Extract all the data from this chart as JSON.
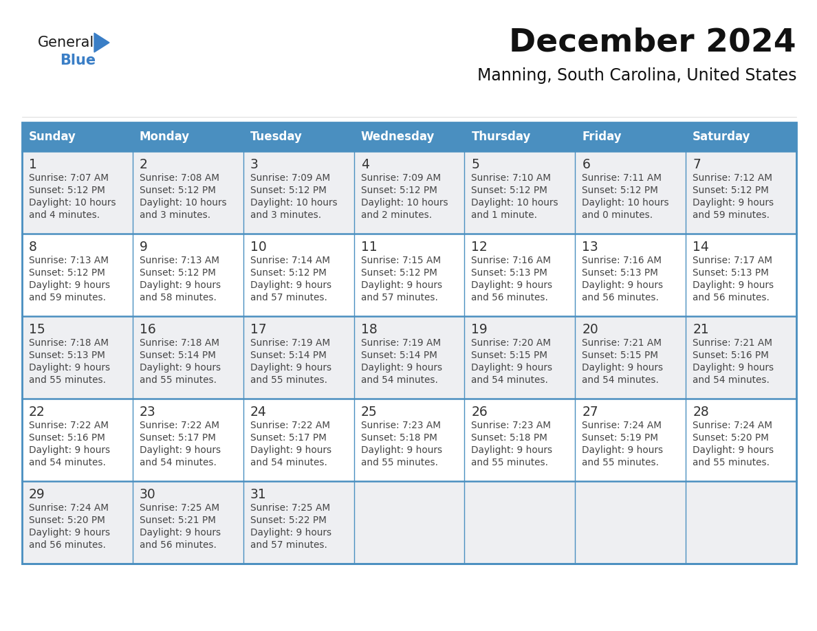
{
  "title": "December 2024",
  "subtitle": "Manning, South Carolina, United States",
  "header_color": "#4A8FC0",
  "header_text_color": "#FFFFFF",
  "cell_bg_even": "#EEEFF2",
  "cell_bg_odd": "#FFFFFF",
  "border_color": "#4A8FC0",
  "text_color": "#444444",
  "day_num_color": "#333333",
  "days_of_week": [
    "Sunday",
    "Monday",
    "Tuesday",
    "Wednesday",
    "Thursday",
    "Friday",
    "Saturday"
  ],
  "weeks": [
    [
      {
        "day": 1,
        "sunrise": "7:07 AM",
        "sunset": "5:12 PM",
        "daylight_h": "10 hours",
        "daylight_m": "and 4 minutes."
      },
      {
        "day": 2,
        "sunrise": "7:08 AM",
        "sunset": "5:12 PM",
        "daylight_h": "10 hours",
        "daylight_m": "and 3 minutes."
      },
      {
        "day": 3,
        "sunrise": "7:09 AM",
        "sunset": "5:12 PM",
        "daylight_h": "10 hours",
        "daylight_m": "and 3 minutes."
      },
      {
        "day": 4,
        "sunrise": "7:09 AM",
        "sunset": "5:12 PM",
        "daylight_h": "10 hours",
        "daylight_m": "and 2 minutes."
      },
      {
        "day": 5,
        "sunrise": "7:10 AM",
        "sunset": "5:12 PM",
        "daylight_h": "10 hours",
        "daylight_m": "and 1 minute."
      },
      {
        "day": 6,
        "sunrise": "7:11 AM",
        "sunset": "5:12 PM",
        "daylight_h": "10 hours",
        "daylight_m": "and 0 minutes."
      },
      {
        "day": 7,
        "sunrise": "7:12 AM",
        "sunset": "5:12 PM",
        "daylight_h": "9 hours",
        "daylight_m": "and 59 minutes."
      }
    ],
    [
      {
        "day": 8,
        "sunrise": "7:13 AM",
        "sunset": "5:12 PM",
        "daylight_h": "9 hours",
        "daylight_m": "and 59 minutes."
      },
      {
        "day": 9,
        "sunrise": "7:13 AM",
        "sunset": "5:12 PM",
        "daylight_h": "9 hours",
        "daylight_m": "and 58 minutes."
      },
      {
        "day": 10,
        "sunrise": "7:14 AM",
        "sunset": "5:12 PM",
        "daylight_h": "9 hours",
        "daylight_m": "and 57 minutes."
      },
      {
        "day": 11,
        "sunrise": "7:15 AM",
        "sunset": "5:12 PM",
        "daylight_h": "9 hours",
        "daylight_m": "and 57 minutes."
      },
      {
        "day": 12,
        "sunrise": "7:16 AM",
        "sunset": "5:13 PM",
        "daylight_h": "9 hours",
        "daylight_m": "and 56 minutes."
      },
      {
        "day": 13,
        "sunrise": "7:16 AM",
        "sunset": "5:13 PM",
        "daylight_h": "9 hours",
        "daylight_m": "and 56 minutes."
      },
      {
        "day": 14,
        "sunrise": "7:17 AM",
        "sunset": "5:13 PM",
        "daylight_h": "9 hours",
        "daylight_m": "and 56 minutes."
      }
    ],
    [
      {
        "day": 15,
        "sunrise": "7:18 AM",
        "sunset": "5:13 PM",
        "daylight_h": "9 hours",
        "daylight_m": "and 55 minutes."
      },
      {
        "day": 16,
        "sunrise": "7:18 AM",
        "sunset": "5:14 PM",
        "daylight_h": "9 hours",
        "daylight_m": "and 55 minutes."
      },
      {
        "day": 17,
        "sunrise": "7:19 AM",
        "sunset": "5:14 PM",
        "daylight_h": "9 hours",
        "daylight_m": "and 55 minutes."
      },
      {
        "day": 18,
        "sunrise": "7:19 AM",
        "sunset": "5:14 PM",
        "daylight_h": "9 hours",
        "daylight_m": "and 54 minutes."
      },
      {
        "day": 19,
        "sunrise": "7:20 AM",
        "sunset": "5:15 PM",
        "daylight_h": "9 hours",
        "daylight_m": "and 54 minutes."
      },
      {
        "day": 20,
        "sunrise": "7:21 AM",
        "sunset": "5:15 PM",
        "daylight_h": "9 hours",
        "daylight_m": "and 54 minutes."
      },
      {
        "day": 21,
        "sunrise": "7:21 AM",
        "sunset": "5:16 PM",
        "daylight_h": "9 hours",
        "daylight_m": "and 54 minutes."
      }
    ],
    [
      {
        "day": 22,
        "sunrise": "7:22 AM",
        "sunset": "5:16 PM",
        "daylight_h": "9 hours",
        "daylight_m": "and 54 minutes."
      },
      {
        "day": 23,
        "sunrise": "7:22 AM",
        "sunset": "5:17 PM",
        "daylight_h": "9 hours",
        "daylight_m": "and 54 minutes."
      },
      {
        "day": 24,
        "sunrise": "7:22 AM",
        "sunset": "5:17 PM",
        "daylight_h": "9 hours",
        "daylight_m": "and 54 minutes."
      },
      {
        "day": 25,
        "sunrise": "7:23 AM",
        "sunset": "5:18 PM",
        "daylight_h": "9 hours",
        "daylight_m": "and 55 minutes."
      },
      {
        "day": 26,
        "sunrise": "7:23 AM",
        "sunset": "5:18 PM",
        "daylight_h": "9 hours",
        "daylight_m": "and 55 minutes."
      },
      {
        "day": 27,
        "sunrise": "7:24 AM",
        "sunset": "5:19 PM",
        "daylight_h": "9 hours",
        "daylight_m": "and 55 minutes."
      },
      {
        "day": 28,
        "sunrise": "7:24 AM",
        "sunset": "5:20 PM",
        "daylight_h": "9 hours",
        "daylight_m": "and 55 minutes."
      }
    ],
    [
      {
        "day": 29,
        "sunrise": "7:24 AM",
        "sunset": "5:20 PM",
        "daylight_h": "9 hours",
        "daylight_m": "and 56 minutes."
      },
      {
        "day": 30,
        "sunrise": "7:25 AM",
        "sunset": "5:21 PM",
        "daylight_h": "9 hours",
        "daylight_m": "and 56 minutes."
      },
      {
        "day": 31,
        "sunrise": "7:25 AM",
        "sunset": "5:22 PM",
        "daylight_h": "9 hours",
        "daylight_m": "and 57 minutes."
      },
      null,
      null,
      null,
      null
    ]
  ],
  "logo_color_general": "#1a1a1a",
  "logo_color_blue": "#3A7EC6",
  "logo_text_general": "General",
  "logo_text_blue": "Blue",
  "fig_width": 11.88,
  "fig_height": 9.18,
  "dpi": 100
}
